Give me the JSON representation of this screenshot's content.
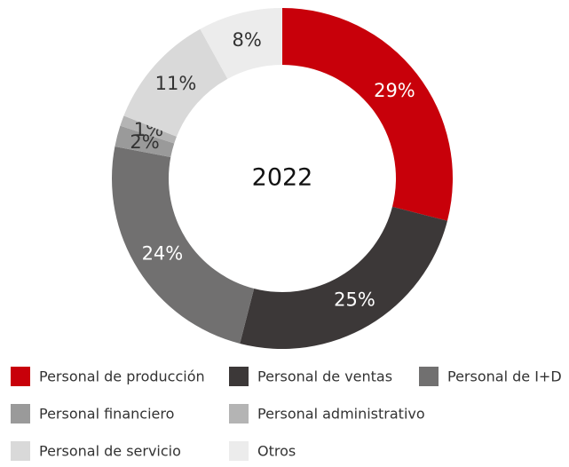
{
  "chart_data": {
    "type": "donut",
    "center_label": "2022",
    "categories": [
      "Personal de producción",
      "Personal de ventas",
      "Personal de I+D",
      "Personal financiero",
      "Personal administrativo",
      "Personal de servicio",
      "Otros"
    ],
    "values": [
      29,
      25,
      24,
      2,
      1,
      11,
      8
    ],
    "value_labels": [
      "29%",
      "25%",
      "24%",
      "2%",
      "1%",
      "11%",
      "8%"
    ],
    "colors": [
      "#c8000a",
      "#3c3838",
      "#717070",
      "#9a9a9a",
      "#b4b4b4",
      "#d9d9d9",
      "#ececec"
    ]
  }
}
